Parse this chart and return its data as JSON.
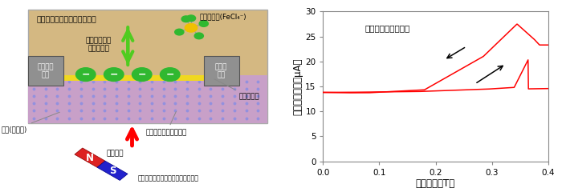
{
  "fig_width": 7.0,
  "fig_height": 2.4,
  "dpi": 100,
  "chart_xlim": [
    0.0,
    0.4
  ],
  "chart_ylim": [
    0,
    30
  ],
  "chart_xticks": [
    0.0,
    0.1,
    0.2,
    0.3,
    0.4
  ],
  "chart_yticks": [
    0,
    5,
    10,
    15,
    20,
    25,
    30
  ],
  "chart_xlabel": "印加磁場（T）",
  "chart_ylabel": "ドレイン電流（μA）",
  "annotation_text": "磁場スイープの向き",
  "line_color": "#ff0000",
  "diagram_title": "磁性イオンを含む液体電解質",
  "diagram_bg_tan": "#d4b882",
  "diagram_bg_purple": "#c8a0c8",
  "diagram_yellow": "#f0d820",
  "diagram_gray": "#909090",
  "diagram_green_ion": "#30b830",
  "diagram_blue_dot": "#9090e0",
  "ion_label": "磁性イオン(FeCl₄⁻)",
  "arrow_label": "磁気力による\nイオン輸送",
  "drain_label1": "ドレイン",
  "drain_label2": "電極",
  "source_label1": "ソース",
  "source_label2": "電極",
  "label_edl": "電気二重層",
  "label_hole": "正孔(ホール)",
  "label_diamond": "水素終端ダイヤモンド",
  "label_extfield": "外部磁場",
  "label_magnetsrc": "外部磁場源（永久磁石、電磁石等）"
}
